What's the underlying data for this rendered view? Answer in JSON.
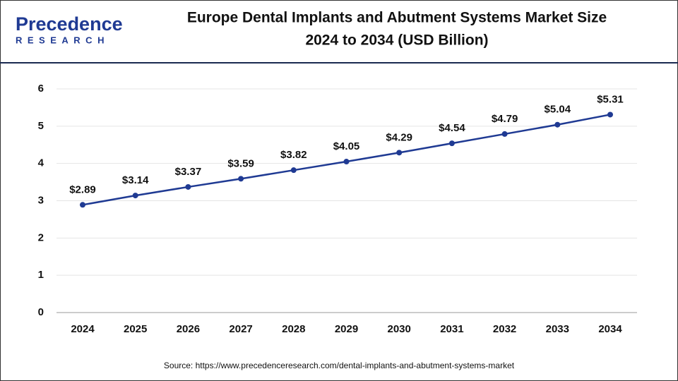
{
  "logo": {
    "name": "Precedence",
    "tagline": "RESEARCH"
  },
  "chart_data": {
    "type": "line",
    "title": [
      "Europe Dental Implants and Abutment Systems Market Size",
      "2024 to 2034 (USD Billion)"
    ],
    "categories": [
      "2024",
      "2025",
      "2026",
      "2027",
      "2028",
      "2029",
      "2030",
      "2031",
      "2032",
      "2033",
      "2034"
    ],
    "series": [
      {
        "color": "#1f3a93",
        "values": [
          2.89,
          3.14,
          3.37,
          3.59,
          3.82,
          4.05,
          4.29,
          4.54,
          4.79,
          5.04,
          5.31
        ],
        "value_labels": [
          "$2.89",
          "$3.14",
          "$3.37",
          "$3.59",
          "$3.82",
          "$4.05",
          "$4.29",
          "$4.54",
          "$4.79",
          "$5.04",
          "$5.31"
        ]
      }
    ],
    "ylim": [
      0,
      6
    ],
    "yticks": [
      0,
      1,
      2,
      3,
      4,
      5,
      6
    ],
    "grid": true,
    "source": "Source: https://www.precedenceresearch.com/dental-implants-and-abutment-systems-market"
  }
}
